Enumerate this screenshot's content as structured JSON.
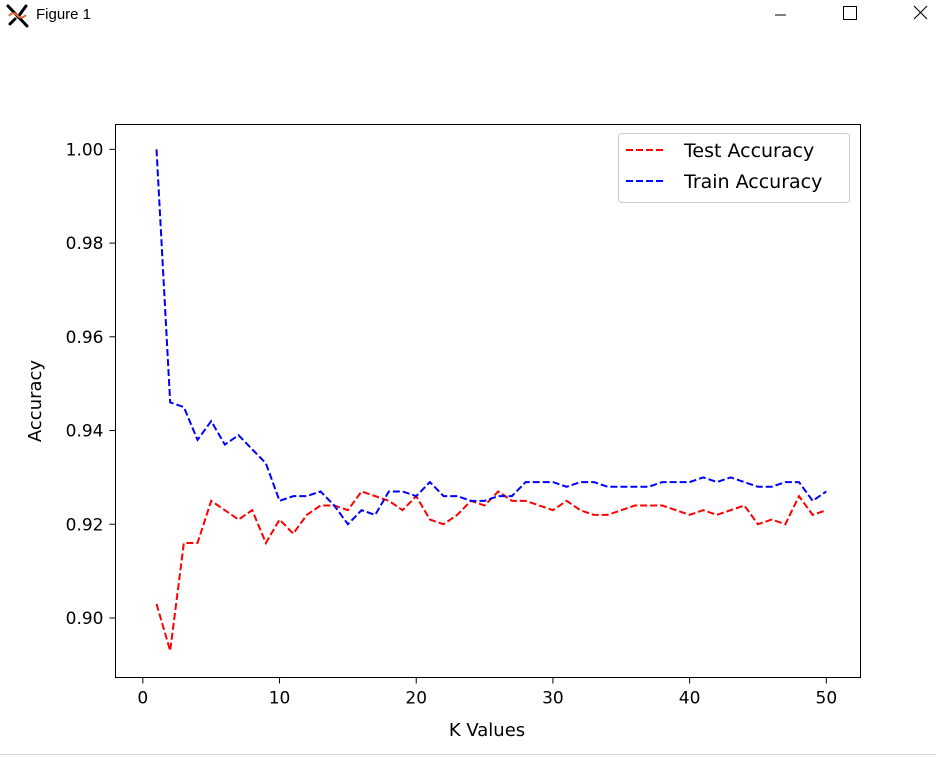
{
  "window": {
    "title": "Figure 1",
    "icon": "matplotlib-figure-icon"
  },
  "chart_data": {
    "type": "line",
    "xlabel": "K Values",
    "ylabel": "Accuracy",
    "xlim": [
      -2,
      52.5
    ],
    "ylim": [
      0.8873,
      1.0053
    ],
    "xticks": [
      0,
      10,
      20,
      30,
      40,
      50
    ],
    "yticks": [
      0.9,
      0.92,
      0.94,
      0.96,
      0.98,
      1.0
    ],
    "ytick_labels": [
      "0.90",
      "0.92",
      "0.94",
      "0.96",
      "0.98",
      "1.00"
    ],
    "legend": "top-right",
    "grid": false,
    "x": [
      1,
      2,
      3,
      4,
      5,
      6,
      7,
      8,
      9,
      10,
      11,
      12,
      13,
      14,
      15,
      16,
      17,
      18,
      19,
      20,
      21,
      22,
      23,
      24,
      25,
      26,
      27,
      28,
      29,
      30,
      31,
      32,
      33,
      34,
      35,
      36,
      37,
      38,
      39,
      40,
      41,
      42,
      43,
      44,
      45,
      46,
      47,
      48,
      49,
      50
    ],
    "series": [
      {
        "name": "Test Accuracy",
        "color": "#ff0000",
        "style": "dashed",
        "values": [
          0.903,
          0.893,
          0.916,
          0.916,
          0.925,
          0.923,
          0.921,
          0.923,
          0.916,
          0.921,
          0.918,
          0.922,
          0.924,
          0.924,
          0.923,
          0.927,
          0.926,
          0.925,
          0.923,
          0.926,
          0.921,
          0.92,
          0.922,
          0.925,
          0.924,
          0.927,
          0.925,
          0.925,
          0.924,
          0.923,
          0.925,
          0.923,
          0.922,
          0.922,
          0.923,
          0.924,
          0.924,
          0.924,
          0.923,
          0.922,
          0.923,
          0.922,
          0.923,
          0.924,
          0.92,
          0.921,
          0.92,
          0.926,
          0.922,
          0.923
        ]
      },
      {
        "name": "Train Accuracy",
        "color": "#0000ff",
        "style": "dashed",
        "values": [
          1.0,
          0.946,
          0.945,
          0.938,
          0.942,
          0.937,
          0.939,
          0.936,
          0.933,
          0.925,
          0.926,
          0.926,
          0.927,
          0.924,
          0.92,
          0.923,
          0.922,
          0.927,
          0.927,
          0.926,
          0.929,
          0.926,
          0.926,
          0.925,
          0.925,
          0.926,
          0.926,
          0.929,
          0.929,
          0.929,
          0.928,
          0.929,
          0.929,
          0.928,
          0.928,
          0.928,
          0.928,
          0.929,
          0.929,
          0.929,
          0.93,
          0.929,
          0.93,
          0.929,
          0.928,
          0.928,
          0.929,
          0.929,
          0.925,
          0.927
        ]
      }
    ]
  }
}
